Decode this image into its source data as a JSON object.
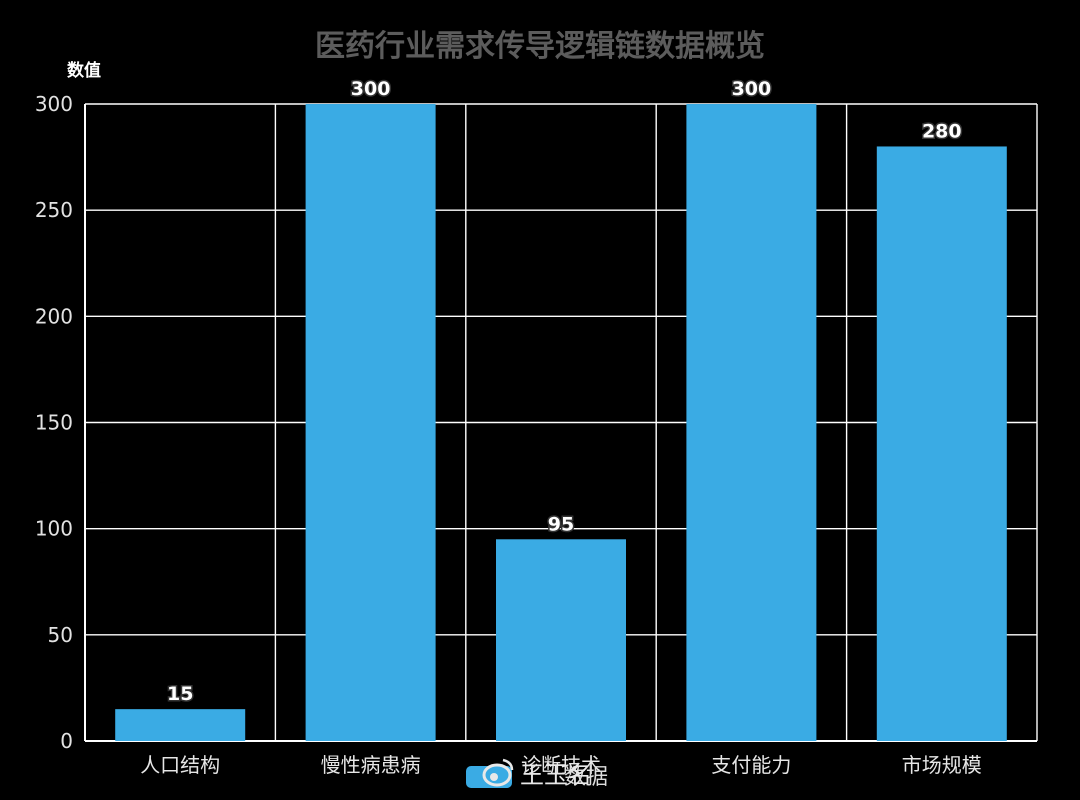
{
  "chart_data": {
    "type": "bar",
    "title": "医药行业需求传导逻辑链数据概览",
    "xlabel": "",
    "ylabel": "数值",
    "categories": [
      "人口结构",
      "慢性病患病",
      "诊断技术",
      "支付能力",
      "市场规模"
    ],
    "values": [
      15,
      300,
      95,
      300,
      280
    ],
    "ylim": [
      0,
      300
    ],
    "yticks": [
      0,
      50,
      100,
      150,
      200,
      250,
      300
    ],
    "grid": true,
    "legend": {
      "label": "数据",
      "placement": "bottom-center"
    },
    "colors": {
      "bar": "#3aabe4",
      "background": "#000000",
      "grid": "#ffffff"
    }
  },
  "watermark": {
    "text": "王玉名",
    "icon": "weibo-icon"
  }
}
